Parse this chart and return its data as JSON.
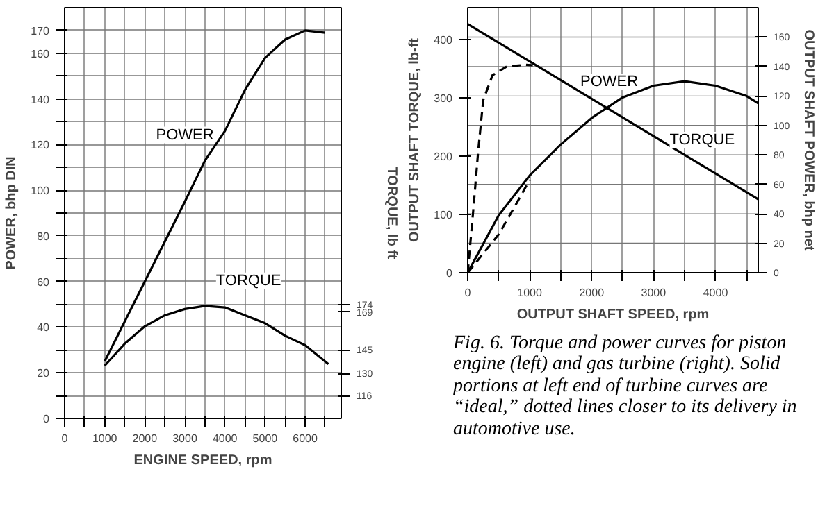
{
  "chart_data": [
    {
      "type": "line",
      "xlabel": "ENGINE SPEED, rpm",
      "ylabel": "POWER, bhp DIN",
      "y2label": "TORQUE, lb ft",
      "xlim": [
        0,
        6900
      ],
      "ylim": [
        0,
        180
      ],
      "y2lim": [
        101.5,
        362.5
      ],
      "xticks": [
        0,
        {
          "value": 500,
          "label": null
        },
        1000,
        {
          "value": 1500,
          "label": null
        },
        2000,
        {
          "value": 2500,
          "label": null
        },
        3000,
        {
          "value": 3500,
          "label": null
        },
        4000,
        {
          "value": 4500,
          "label": null
        },
        5000,
        {
          "value": 5500,
          "label": null
        },
        6000,
        {
          "value": 6500,
          "label": null
        }
      ],
      "yticks": [
        0,
        {
          "value": 10,
          "label": null
        },
        20,
        {
          "value": 30,
          "label": null
        },
        40,
        {
          "value": 50,
          "label": null
        },
        60,
        {
          "value": 70,
          "label": null
        },
        80,
        {
          "value": 90,
          "label": null
        },
        100,
        {
          "value": 110,
          "label": null
        },
        120,
        {
          "value": 130,
          "label": null
        },
        140,
        {
          "value": 150,
          "label": null
        },
        160,
        170
      ],
      "y2ticks": [
        116,
        130,
        145,
        169,
        174
      ],
      "grid": true,
      "line_style": "solid",
      "color": "#000000",
      "series": [
        {
          "name": "POWER",
          "x": [
            1000,
            2000,
            3000,
            3500,
            4000,
            4500,
            5000,
            5500,
            6000,
            6500
          ],
          "values": [
            25,
            60,
            95,
            113,
            126,
            144,
            158,
            166,
            170,
            169
          ]
        },
        {
          "name": "TORQUE",
          "axis": "y2",
          "x": [
            1000,
            1500,
            2000,
            2500,
            3000,
            3500,
            4000,
            4500,
            5000,
            5500,
            6000,
            6580
          ],
          "values": [
            135,
            149,
            160,
            167,
            171,
            173,
            172,
            167,
            162,
            154,
            148,
            136
          ]
        }
      ]
    },
    {
      "type": "line",
      "xlabel": "OUTPUT SHAFT SPEED, rpm",
      "ylabel": "OUTPUT SHAFT TORQUE, lb-ft",
      "y2label": "OUTPUT SHAFT POWER, bhp net",
      "xlim": [
        0,
        4690
      ],
      "ylim": [
        0,
        455
      ],
      "y2lim": [
        0,
        180
      ],
      "xticks": [
        0,
        {
          "value": 500,
          "label": null
        },
        1000,
        {
          "value": 1500,
          "label": null
        },
        2000,
        {
          "value": 2500,
          "label": null
        },
        3000,
        {
          "value": 3500,
          "label": null
        },
        4000,
        {
          "value": 4500,
          "label": null
        }
      ],
      "yticks": [
        0,
        100,
        200,
        300,
        400
      ],
      "y2ticks": [
        0,
        20,
        40,
        60,
        80,
        100,
        120,
        140,
        160
      ],
      "grid": "xy2",
      "color": "#000000",
      "series": [
        {
          "name": "TORQUE",
          "x": [
            0,
            4690
          ],
          "values": [
            427,
            126
          ]
        },
        {
          "name": "POWER",
          "axis": "y2",
          "x": [
            0,
            500,
            1000,
            1500,
            2000,
            2500,
            3000,
            3500,
            4000,
            4500,
            4690
          ],
          "values": [
            0,
            39,
            66,
            87,
            105,
            119,
            127,
            130,
            127,
            120,
            115
          ]
        },
        {
          "line_style": "dashed",
          "x": [
            0,
            100,
            170,
            250,
            400,
            630,
            940,
            1050
          ],
          "values": [
            0,
            120,
            210,
            296,
            339,
            354,
            357,
            356
          ]
        },
        {
          "axis": "y2",
          "line_style": "dashed",
          "x": [
            0,
            500,
            800,
            1000
          ],
          "values": [
            0,
            26,
            48,
            63
          ]
        }
      ],
      "annotations": [
        "Fig. 6. Torque and power curves for piston engine (left) and gas turbine (right). Solid portions at left end of turbine curves are “ideal,” dotted lines closer to its delivery in automotive use."
      ]
    }
  ]
}
